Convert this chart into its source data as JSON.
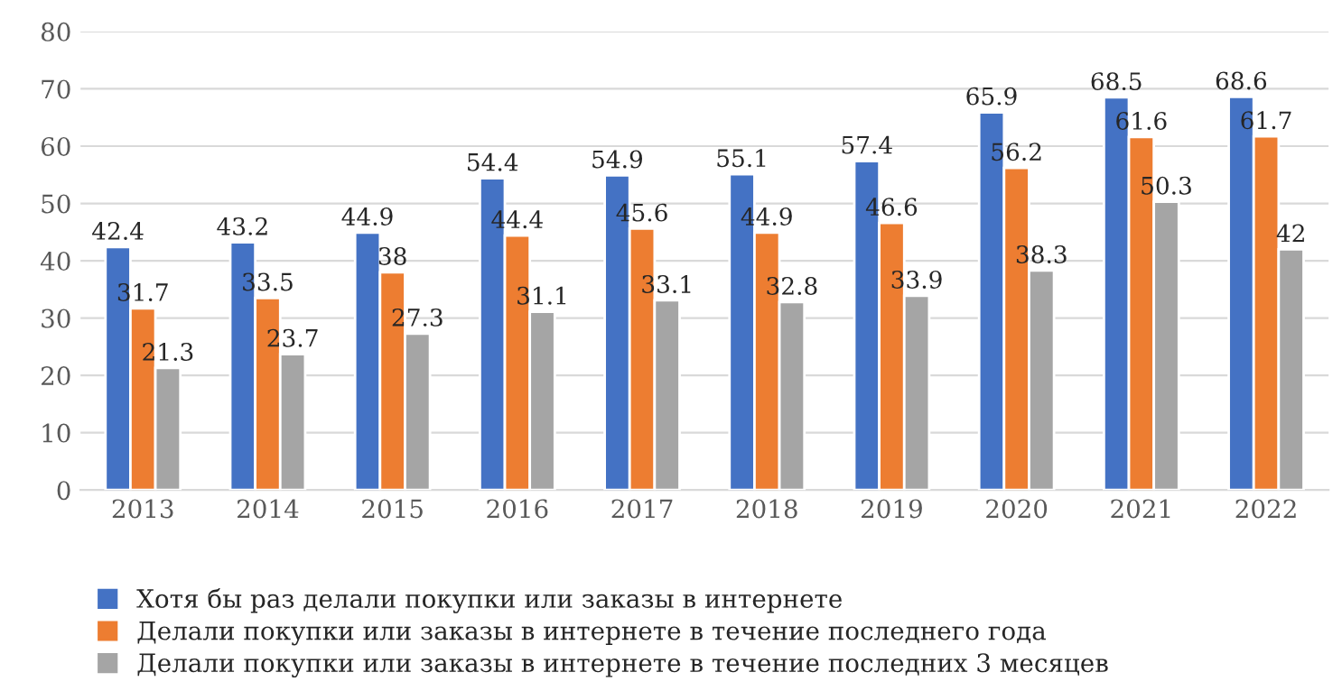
{
  "chart_data": {
    "type": "bar",
    "categories": [
      "2013",
      "2014",
      "2015",
      "2016",
      "2017",
      "2018",
      "2019",
      "2020",
      "2021",
      "2022"
    ],
    "series": [
      {
        "name": "Хотя бы раз делали покупки или заказы в интернете",
        "color": "#4472c4",
        "values": [
          42.4,
          43.2,
          44.9,
          54.4,
          54.9,
          55.1,
          57.4,
          65.9,
          68.5,
          68.6
        ]
      },
      {
        "name": "Делали покупки или заказы в интернете в течение последнего года",
        "color": "#ed7d31",
        "values": [
          31.7,
          33.5,
          38,
          44.4,
          45.6,
          44.9,
          46.6,
          56.2,
          61.6,
          61.7
        ]
      },
      {
        "name": "Делали покупки или заказы в интернете в течение последних 3 месяцев",
        "color": "#a5a5a5",
        "values": [
          21.3,
          23.7,
          27.3,
          31.1,
          33.1,
          32.8,
          33.9,
          38.3,
          50.3,
          42
        ]
      }
    ],
    "ylim": [
      0,
      80
    ],
    "yticks": [
      0,
      10,
      20,
      30,
      40,
      50,
      60,
      70,
      80
    ],
    "grid": "y",
    "legend": "bottom",
    "data_labels": true
  }
}
